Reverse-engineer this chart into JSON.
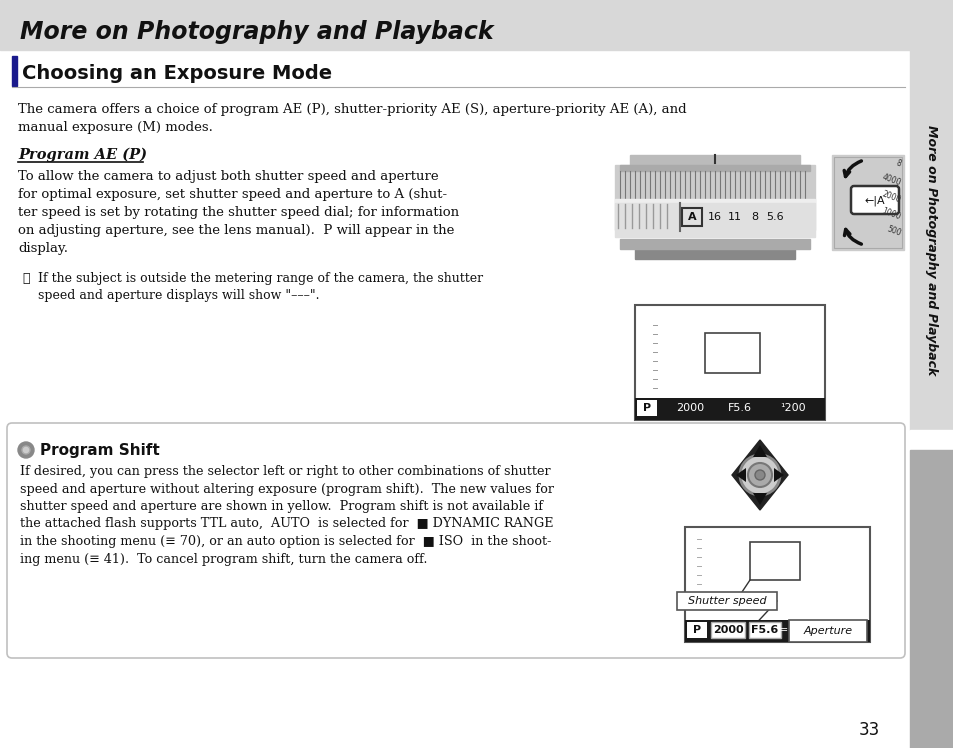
{
  "bg_color": "#f0f0f0",
  "page_bg": "#ffffff",
  "header_bg": "#d0d0d0",
  "header_text": "More on Photography and Playback",
  "header_text_color": "#000000",
  "section_title": "Choosing an Exposure Mode",
  "section_bar_color": "#1a1a8c",
  "sidebar_text": "More on Photography and Playback",
  "page_number": "33",
  "sidebar_bg": "#d0d0d0",
  "sidebar_dark_bg": "#999999"
}
